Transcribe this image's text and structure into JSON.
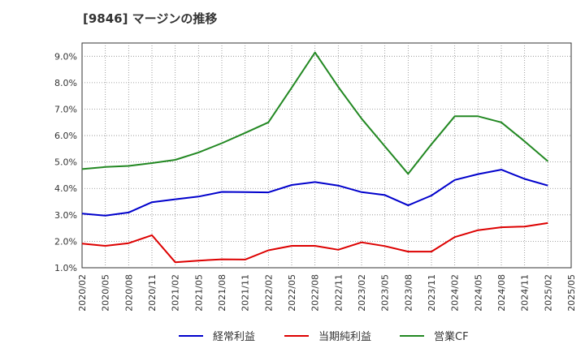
{
  "chart_data": {
    "type": "line",
    "title": "[9846]  マージンの推移",
    "x": [
      "2020/02",
      "2020/05",
      "2020/08",
      "2020/11",
      "2021/02",
      "2021/05",
      "2021/08",
      "2021/11",
      "2022/02",
      "2022/05",
      "2022/08",
      "2022/11",
      "2023/02",
      "2023/05",
      "2023/08",
      "2023/11",
      "2024/02",
      "2024/05",
      "2024/08",
      "2024/11",
      "2025/02",
      "2025/05"
    ],
    "series": [
      {
        "name": "経常利益",
        "color": "#0000cc",
        "values": [
          3.05,
          2.97,
          3.09,
          3.48,
          3.59,
          3.69,
          3.87,
          3.86,
          3.85,
          4.13,
          4.24,
          4.11,
          3.86,
          3.75,
          3.36,
          3.73,
          4.32,
          4.54,
          4.71,
          4.36,
          4.11,
          null
        ]
      },
      {
        "name": "当期純利益",
        "color": "#dd0000",
        "values": [
          1.91,
          1.83,
          1.93,
          2.23,
          1.21,
          1.27,
          1.32,
          1.31,
          1.66,
          1.83,
          1.83,
          1.68,
          1.96,
          1.82,
          1.61,
          1.61,
          2.16,
          2.42,
          2.53,
          2.56,
          2.69,
          null
        ]
      },
      {
        "name": "営業CF",
        "color": "#228822",
        "values": [
          4.73,
          4.81,
          4.85,
          4.96,
          5.08,
          5.36,
          5.71,
          6.1,
          6.5,
          7.81,
          9.14,
          7.84,
          6.64,
          5.59,
          4.55,
          5.67,
          6.73,
          6.73,
          6.5,
          5.78,
          5.03,
          null
        ]
      }
    ],
    "y_ticks": [
      "1.0%",
      "2.0%",
      "3.0%",
      "4.0%",
      "5.0%",
      "6.0%",
      "7.0%",
      "8.0%",
      "9.0%"
    ],
    "ylim": [
      1.0,
      9.5
    ],
    "grid": true,
    "legend_position": "bottom"
  }
}
